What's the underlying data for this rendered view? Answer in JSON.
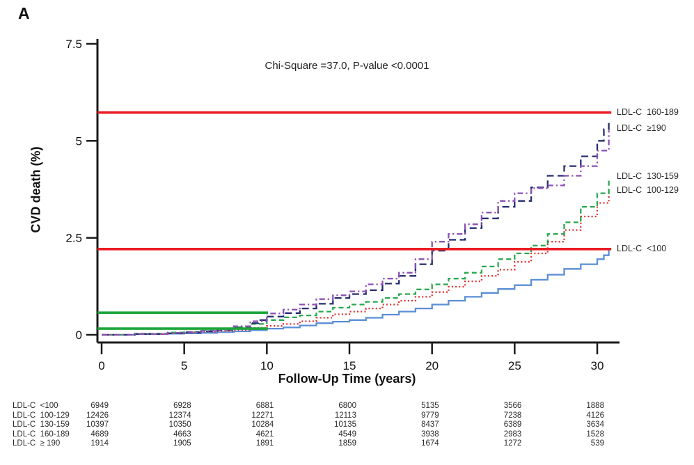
{
  "panel_label": "A",
  "annotation": "Chi-Square =37.0, P-value <0.0001",
  "axes": {
    "x_label": "Follow-Up Time (years)",
    "y_label": "CVD death (%)",
    "x_ticks": [
      0,
      5,
      10,
      15,
      20,
      25,
      30
    ],
    "y_ticks": [
      "0",
      "2.5",
      "5",
      "7.5"
    ],
    "y_tick_values": [
      0,
      2.5,
      5,
      7.5
    ]
  },
  "chart_data": {
    "type": "line",
    "subtype": "cumulative-incidence-step-curves",
    "title": "",
    "annotation": "Chi-Square =37.0, P-value <0.0001",
    "xlabel": "Follow-Up Time (years)",
    "ylabel": "CVD death (%)",
    "xlim": [
      0,
      31
    ],
    "ylim": [
      0,
      7.5
    ],
    "grid": false,
    "legend_position": "right-of-curve-ends",
    "series": [
      {
        "name": "LDL-C  <100",
        "color": "#5b8ed6",
        "dash": "solid",
        "points": [
          [
            0,
            0
          ],
          [
            2,
            0.02
          ],
          [
            4,
            0.03
          ],
          [
            5,
            0.04
          ],
          [
            6,
            0.05
          ],
          [
            7,
            0.07
          ],
          [
            8,
            0.09
          ],
          [
            9,
            0.12
          ],
          [
            10,
            0.16
          ],
          [
            11,
            0.19
          ],
          [
            12,
            0.24
          ],
          [
            13,
            0.3
          ],
          [
            14,
            0.34
          ],
          [
            15,
            0.38
          ],
          [
            16,
            0.44
          ],
          [
            17,
            0.52
          ],
          [
            18,
            0.6
          ],
          [
            19,
            0.68
          ],
          [
            20,
            0.78
          ],
          [
            21,
            0.88
          ],
          [
            22,
            0.98
          ],
          [
            23,
            1.08
          ],
          [
            24,
            1.18
          ],
          [
            25,
            1.28
          ],
          [
            26,
            1.42
          ],
          [
            27,
            1.55
          ],
          [
            28,
            1.7
          ],
          [
            29,
            1.82
          ],
          [
            30,
            1.95
          ],
          [
            30.4,
            2.05
          ],
          [
            30.7,
            2.18
          ]
        ]
      },
      {
        "name": "LDL-C  100-129",
        "color": "#e03030",
        "dash": "dotted",
        "points": [
          [
            0,
            0
          ],
          [
            2,
            0.02
          ],
          [
            4,
            0.04
          ],
          [
            5,
            0.06
          ],
          [
            6,
            0.08
          ],
          [
            7,
            0.1
          ],
          [
            8,
            0.13
          ],
          [
            9,
            0.18
          ],
          [
            10,
            0.23
          ],
          [
            11,
            0.28
          ],
          [
            12,
            0.35
          ],
          [
            13,
            0.44
          ],
          [
            14,
            0.53
          ],
          [
            15,
            0.6
          ],
          [
            16,
            0.68
          ],
          [
            17,
            0.78
          ],
          [
            18,
            0.88
          ],
          [
            19,
            0.98
          ],
          [
            20,
            1.1
          ],
          [
            21,
            1.24
          ],
          [
            22,
            1.38
          ],
          [
            23,
            1.52
          ],
          [
            24,
            1.68
          ],
          [
            25,
            1.88
          ],
          [
            26,
            2.1
          ],
          [
            27,
            2.4
          ],
          [
            28,
            2.7
          ],
          [
            29,
            3.05
          ],
          [
            30,
            3.4
          ],
          [
            30.7,
            3.74
          ]
        ]
      },
      {
        "name": "LDL-C  130-159",
        "color": "#2aa84e",
        "dash": "dashed",
        "points": [
          [
            0,
            0
          ],
          [
            2,
            0.03
          ],
          [
            4,
            0.06
          ],
          [
            5,
            0.08
          ],
          [
            6,
            0.11
          ],
          [
            7,
            0.15
          ],
          [
            8,
            0.2
          ],
          [
            9,
            0.28
          ],
          [
            10,
            0.38
          ],
          [
            11,
            0.45
          ],
          [
            12,
            0.5
          ],
          [
            13,
            0.6
          ],
          [
            14,
            0.7
          ],
          [
            15,
            0.78
          ],
          [
            16,
            0.85
          ],
          [
            17,
            0.95
          ],
          [
            18,
            1.05
          ],
          [
            19,
            1.17
          ],
          [
            20,
            1.3
          ],
          [
            21,
            1.45
          ],
          [
            22,
            1.6
          ],
          [
            23,
            1.76
          ],
          [
            24,
            1.95
          ],
          [
            25,
            2.1
          ],
          [
            26,
            2.3
          ],
          [
            27,
            2.6
          ],
          [
            28,
            2.9
          ],
          [
            29,
            3.3
          ],
          [
            30,
            3.65
          ],
          [
            30.7,
            4.05
          ]
        ]
      },
      {
        "name": "LDL-C  160-189",
        "color": "#262d6e",
        "dash": "longdash",
        "points": [
          [
            0,
            0
          ],
          [
            2,
            0.02
          ],
          [
            4,
            0.04
          ],
          [
            5,
            0.06
          ],
          [
            6,
            0.09
          ],
          [
            7,
            0.13
          ],
          [
            8,
            0.18
          ],
          [
            9,
            0.3
          ],
          [
            9.5,
            0.38
          ],
          [
            10,
            0.47
          ],
          [
            11,
            0.56
          ],
          [
            12,
            0.68
          ],
          [
            13,
            0.8
          ],
          [
            14,
            0.95
          ],
          [
            15,
            1.05
          ],
          [
            16,
            1.15
          ],
          [
            17,
            1.32
          ],
          [
            18,
            1.52
          ],
          [
            19,
            1.82
          ],
          [
            20,
            2.17
          ],
          [
            21,
            2.45
          ],
          [
            22,
            2.75
          ],
          [
            23,
            3.0
          ],
          [
            24,
            3.3
          ],
          [
            25,
            3.45
          ],
          [
            26,
            3.8
          ],
          [
            27,
            4.1
          ],
          [
            28,
            4.35
          ],
          [
            29,
            4.6
          ],
          [
            30,
            5.0
          ],
          [
            30.4,
            5.3
          ],
          [
            30.7,
            5.5
          ]
        ]
      },
      {
        "name": "LDL-C  ≥190",
        "color": "#8c51b5",
        "dash": "dashdot",
        "points": [
          [
            0,
            0
          ],
          [
            2,
            0.02
          ],
          [
            4,
            0.05
          ],
          [
            5,
            0.07
          ],
          [
            6,
            0.1
          ],
          [
            7,
            0.14
          ],
          [
            8,
            0.22
          ],
          [
            9,
            0.35
          ],
          [
            10,
            0.55
          ],
          [
            11,
            0.65
          ],
          [
            12,
            0.78
          ],
          [
            13,
            0.92
          ],
          [
            14,
            1.02
          ],
          [
            15,
            1.12
          ],
          [
            16,
            1.3
          ],
          [
            17,
            1.45
          ],
          [
            18,
            1.6
          ],
          [
            19,
            1.95
          ],
          [
            20,
            2.4
          ],
          [
            21,
            2.6
          ],
          [
            22,
            2.85
          ],
          [
            23,
            3.15
          ],
          [
            24,
            3.45
          ],
          [
            25,
            3.65
          ],
          [
            26,
            3.78
          ],
          [
            27,
            3.85
          ],
          [
            28,
            4.1
          ],
          [
            29,
            4.35
          ],
          [
            30,
            4.75
          ],
          [
            30.7,
            5.27
          ]
        ]
      }
    ],
    "reference_lines": [
      {
        "name": "red-30yr-upper",
        "color": "#ea1c24",
        "y": 5.73,
        "x_start": -0.25,
        "x_end": 30.85
      },
      {
        "name": "red-30yr-lower",
        "color": "#ea1c24",
        "y": 2.21,
        "x_start": -0.25,
        "x_end": 30.85
      },
      {
        "name": "green-10yr-upper",
        "color": "#1fa63c",
        "y": 0.57,
        "x_start": -0.25,
        "x_end": 10.07
      },
      {
        "name": "green-10yr-lower",
        "color": "#1fa63c",
        "y": 0.16,
        "x_start": -0.25,
        "x_end": 10.07
      }
    ],
    "curve_labels": [
      {
        "text": "LDL-C  160-189",
        "y_pct": 5.76
      },
      {
        "text": "LDL-C  ≥190",
        "y_pct": 5.35
      },
      {
        "text": "LDL-C  130-159",
        "y_pct": 4.11
      },
      {
        "text": "LDL-C  100-129",
        "y_pct": 3.75
      },
      {
        "text": "LDL-C  <100",
        "y_pct": 2.24
      }
    ]
  },
  "risk_table": {
    "rows": [
      {
        "label": "LDL-C  <100",
        "counts": [
          "6949",
          "6928",
          "6881",
          "6800",
          "5135",
          "3566",
          "1888"
        ]
      },
      {
        "label": "LDL-C  100-129",
        "counts": [
          "12426",
          "12374",
          "12271",
          "12113",
          "9779",
          "7238",
          "4126"
        ]
      },
      {
        "label": "LDL-C  130-159",
        "counts": [
          "10397",
          "10350",
          "10284",
          "10135",
          "8437",
          "6389",
          "3634"
        ]
      },
      {
        "label": "LDL-C  160-189",
        "counts": [
          "4689",
          "4663",
          "4621",
          "4549",
          "3938",
          "2983",
          "1528"
        ]
      },
      {
        "label": "LDL-C  ≥ 190",
        "counts": [
          "1914",
          "1905",
          "1891",
          "1859",
          "1674",
          "1272",
          "539"
        ]
      }
    ]
  }
}
